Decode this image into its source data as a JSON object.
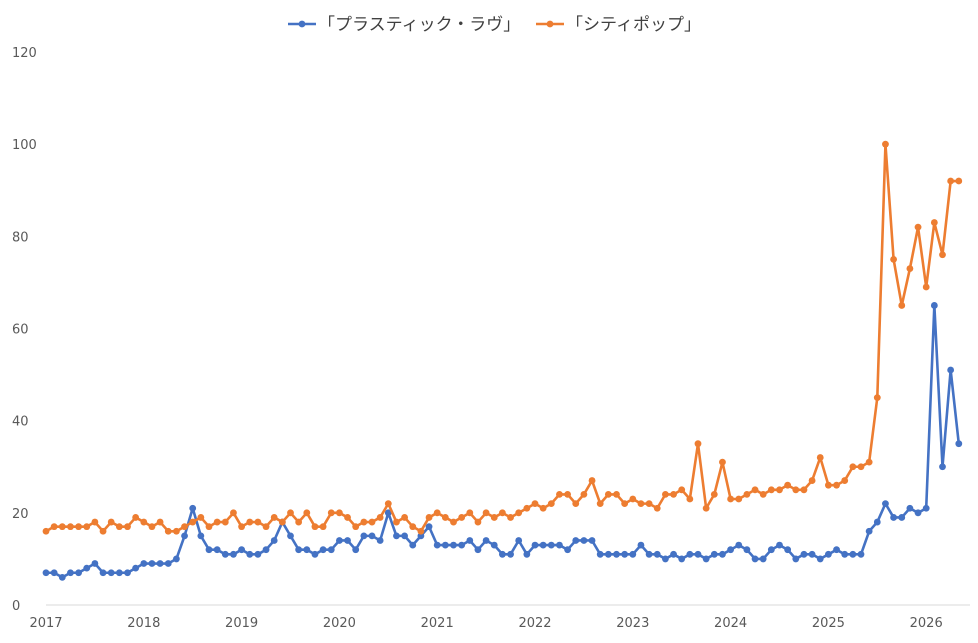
{
  "chart_data": {
    "type": "line",
    "title": "",
    "xlabel": "",
    "ylabel": "",
    "ylim": [
      0,
      120
    ],
    "yticks": [
      0,
      20,
      40,
      60,
      80,
      100,
      120
    ],
    "x_tick_labels": [
      "2017",
      "2018",
      "2019",
      "2020",
      "2021",
      "2022",
      "2023",
      "2024",
      "2025",
      "2026"
    ],
    "grid": false,
    "legend_position": "top",
    "x_start": "2017-01",
    "x_interval": "monthly",
    "series": [
      {
        "name": "「プラスティック・ラヴ」",
        "color": "#4472C4",
        "values": [
          7,
          7,
          6,
          7,
          7,
          8,
          9,
          7,
          7,
          7,
          7,
          8,
          9,
          9,
          9,
          9,
          10,
          15,
          21,
          15,
          12,
          12,
          11,
          11,
          12,
          11,
          11,
          12,
          14,
          18,
          15,
          12,
          12,
          11,
          12,
          12,
          14,
          14,
          12,
          15,
          15,
          14,
          20,
          15,
          15,
          13,
          15,
          17,
          13,
          13,
          13,
          13,
          14,
          12,
          14,
          13,
          11,
          11,
          14,
          11,
          13,
          13,
          13,
          13,
          12,
          14,
          14,
          14,
          11,
          11,
          11,
          11,
          11,
          13,
          11,
          11,
          10,
          11,
          10,
          11,
          11,
          10,
          11,
          11,
          12,
          13,
          12,
          10,
          10,
          12,
          13,
          12,
          10,
          11,
          11,
          10,
          11,
          12,
          11,
          11,
          11,
          16,
          18,
          22,
          19,
          19,
          21,
          20,
          21,
          65,
          30,
          51,
          35
        ]
      },
      {
        "name": "「シティポップ」",
        "color": "#ED7D31",
        "values": [
          16,
          17,
          17,
          17,
          17,
          17,
          18,
          16,
          18,
          17,
          17,
          19,
          18,
          17,
          18,
          16,
          16,
          17,
          18,
          19,
          17,
          18,
          18,
          20,
          17,
          18,
          18,
          17,
          19,
          18,
          20,
          18,
          20,
          17,
          17,
          20,
          20,
          19,
          17,
          18,
          18,
          19,
          22,
          18,
          19,
          17,
          16,
          19,
          20,
          19,
          18,
          19,
          20,
          18,
          20,
          19,
          20,
          19,
          20,
          21,
          22,
          21,
          22,
          24,
          24,
          22,
          24,
          27,
          22,
          24,
          24,
          22,
          23,
          22,
          22,
          21,
          24,
          24,
          25,
          23,
          35,
          21,
          24,
          31,
          23,
          23,
          24,
          25,
          24,
          25,
          25,
          26,
          25,
          25,
          27,
          32,
          26,
          26,
          27,
          30,
          30,
          31,
          45,
          100,
          75,
          65,
          73,
          82,
          69,
          83,
          76,
          92,
          92
        ]
      }
    ]
  }
}
